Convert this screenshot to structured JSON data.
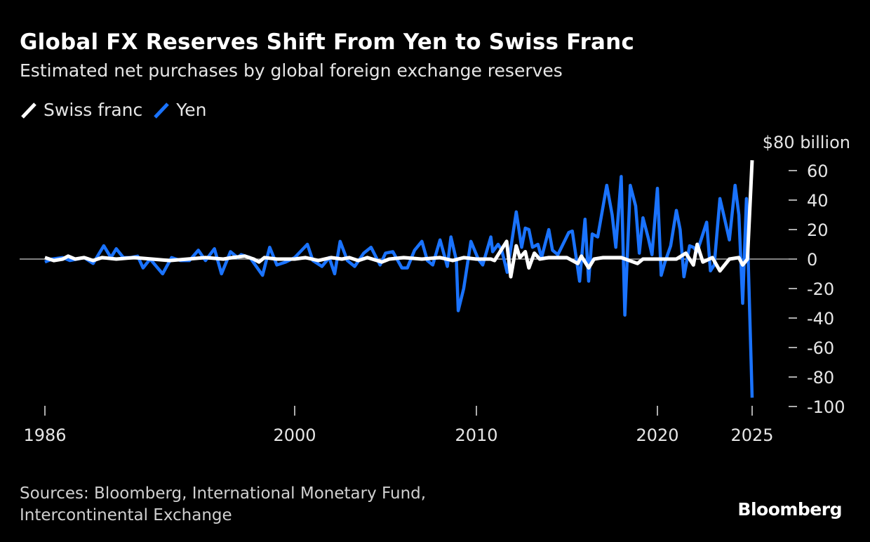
{
  "title": "Global FX Reserves Shift From Yen to Swiss Franc",
  "subtitle": "Estimated net purchases by global foreign exchange reserves",
  "legend": [
    {
      "label": "Swiss franc",
      "color": "#ffffff"
    },
    {
      "label": "Yen",
      "color": "#1a73ff"
    }
  ],
  "sources": [
    "Sources: Bloomberg, International Monetary Fund,",
    "Intercontinental Exchange"
  ],
  "logo": "Bloomberg",
  "chart_data": {
    "type": "line",
    "title": "Global FX Reserves Shift From Yen to Swiss Franc",
    "subtitle": "Estimated net purchases by global foreign exchange reserves",
    "ylabel": "$80 billion",
    "y_unit_label": "$80 billion",
    "ylim": [
      -100,
      80
    ],
    "yticks": [
      60,
      40,
      20,
      0,
      -20,
      -40,
      -60,
      -80,
      -100
    ],
    "xlim": [
      1986,
      2025
    ],
    "xticks": [
      1986,
      2000,
      2010,
      2020,
      2025
    ],
    "y_axis_position": "right",
    "legend_position": "top-left",
    "grid": false,
    "zero_line": true,
    "series": [
      {
        "name": "Yen",
        "color": "#1a73ff",
        "points": [
          [
            1986.0,
            -2
          ],
          [
            1986.4,
            0
          ],
          [
            1987.0,
            1
          ],
          [
            1987.4,
            -1
          ],
          [
            1987.8,
            0
          ],
          [
            1988.2,
            1
          ],
          [
            1988.7,
            -3
          ],
          [
            1989.3,
            9
          ],
          [
            1989.7,
            1
          ],
          [
            1990.0,
            7
          ],
          [
            1990.4,
            1
          ],
          [
            1990.8,
            1
          ],
          [
            1991.2,
            2
          ],
          [
            1991.5,
            -6
          ],
          [
            1991.9,
            0
          ],
          [
            1992.6,
            -10
          ],
          [
            1993.1,
            1
          ],
          [
            1993.6,
            -1
          ],
          [
            1994.1,
            -1
          ],
          [
            1994.6,
            6
          ],
          [
            1995.0,
            -1
          ],
          [
            1995.5,
            7
          ],
          [
            1995.9,
            -10
          ],
          [
            1996.4,
            5
          ],
          [
            1996.8,
            1
          ],
          [
            1997.0,
            3
          ],
          [
            1997.5,
            1
          ],
          [
            1998.2,
            -11
          ],
          [
            1998.6,
            8
          ],
          [
            1999.0,
            -4
          ],
          [
            1999.5,
            -2
          ],
          [
            2000.0,
            1
          ],
          [
            2000.7,
            10
          ],
          [
            2001.0,
            -1
          ],
          [
            2001.5,
            -5
          ],
          [
            2001.9,
            1
          ],
          [
            2002.2,
            -10
          ],
          [
            2002.5,
            12
          ],
          [
            2002.9,
            -1
          ],
          [
            2003.3,
            -5
          ],
          [
            2003.8,
            4
          ],
          [
            2004.2,
            8
          ],
          [
            2004.7,
            -4
          ],
          [
            2005.0,
            4
          ],
          [
            2005.4,
            5
          ],
          [
            2005.9,
            -6
          ],
          [
            2006.2,
            -6
          ],
          [
            2006.6,
            6
          ],
          [
            2007.0,
            12
          ],
          [
            2007.3,
            -1
          ],
          [
            2007.6,
            -4
          ],
          [
            2008.0,
            13
          ],
          [
            2008.4,
            -5
          ],
          [
            2008.6,
            15
          ],
          [
            2008.9,
            -1
          ],
          [
            2009.0,
            -35
          ],
          [
            2009.3,
            -20
          ],
          [
            2009.7,
            12
          ],
          [
            2010.1,
            0
          ],
          [
            2010.35,
            -4
          ],
          [
            2010.8,
            15
          ],
          [
            2010.9,
            5
          ],
          [
            2011.2,
            10
          ],
          [
            2011.4,
            6
          ],
          [
            2011.7,
            -9
          ],
          [
            2012.2,
            32
          ],
          [
            2012.5,
            8
          ],
          [
            2012.7,
            21
          ],
          [
            2012.9,
            20
          ],
          [
            2013.1,
            8
          ],
          [
            2013.4,
            10
          ],
          [
            2013.6,
            1
          ],
          [
            2014.0,
            20
          ],
          [
            2014.2,
            6
          ],
          [
            2014.5,
            3
          ],
          [
            2015.1,
            18
          ],
          [
            2015.3,
            19
          ],
          [
            2015.7,
            -15
          ],
          [
            2016.0,
            27
          ],
          [
            2016.2,
            -15
          ],
          [
            2016.4,
            17
          ],
          [
            2016.7,
            15
          ],
          [
            2017.2,
            50
          ],
          [
            2017.5,
            30
          ],
          [
            2017.7,
            8
          ],
          [
            2018.0,
            56
          ],
          [
            2018.2,
            -38
          ],
          [
            2018.5,
            50
          ],
          [
            2018.8,
            36
          ],
          [
            2019.0,
            4
          ],
          [
            2019.2,
            28
          ],
          [
            2019.5,
            14
          ],
          [
            2019.7,
            3
          ],
          [
            2020.0,
            48
          ],
          [
            2020.2,
            -11
          ],
          [
            2020.4,
            -2
          ],
          [
            2020.7,
            9
          ],
          [
            2021.0,
            33
          ],
          [
            2021.2,
            20
          ],
          [
            2021.4,
            -12
          ],
          [
            2021.7,
            9
          ],
          [
            2021.9,
            8
          ],
          [
            2022.1,
            5
          ],
          [
            2022.6,
            25
          ],
          [
            2022.8,
            -8
          ],
          [
            2023.0,
            -4
          ],
          [
            2023.3,
            41
          ],
          [
            2023.5,
            30
          ],
          [
            2023.8,
            13
          ],
          [
            2024.1,
            50
          ],
          [
            2024.3,
            30
          ],
          [
            2024.5,
            -30
          ],
          [
            2024.7,
            41
          ],
          [
            2025.0,
            -94
          ]
        ]
      },
      {
        "name": "Swiss franc",
        "color": "#ffffff",
        "points": [
          [
            1986.0,
            1
          ],
          [
            1986.5,
            -1
          ],
          [
            1987.0,
            0
          ],
          [
            1987.3,
            2
          ],
          [
            1987.7,
            0
          ],
          [
            1988.2,
            1
          ],
          [
            1988.7,
            -1
          ],
          [
            1989.2,
            1
          ],
          [
            1990.0,
            0
          ],
          [
            1991.0,
            1
          ],
          [
            1992.0,
            0
          ],
          [
            1993.0,
            -1
          ],
          [
            1994.0,
            0
          ],
          [
            1995.0,
            1
          ],
          [
            1996.0,
            0
          ],
          [
            1996.5,
            1
          ],
          [
            1997.2,
            2
          ],
          [
            1997.7,
            0
          ],
          [
            1998.0,
            -2
          ],
          [
            1998.3,
            1
          ],
          [
            1999.0,
            0
          ],
          [
            2000.0,
            0
          ],
          [
            2000.6,
            1
          ],
          [
            2001.3,
            -1
          ],
          [
            2002.0,
            1
          ],
          [
            2002.6,
            0
          ],
          [
            2003.0,
            1
          ],
          [
            2003.5,
            -1
          ],
          [
            2004.0,
            1
          ],
          [
            2004.8,
            -2
          ],
          [
            2005.2,
            0
          ],
          [
            2006.0,
            1
          ],
          [
            2007.0,
            0
          ],
          [
            2008.0,
            1
          ],
          [
            2008.7,
            -1
          ],
          [
            2009.3,
            1
          ],
          [
            2010.0,
            0
          ],
          [
            2010.8,
            0
          ],
          [
            2011.0,
            -1
          ],
          [
            2011.67,
            12
          ],
          [
            2011.9,
            -12
          ],
          [
            2012.2,
            9
          ],
          [
            2012.4,
            1
          ],
          [
            2012.7,
            5
          ],
          [
            2012.9,
            -6
          ],
          [
            2013.2,
            4
          ],
          [
            2013.5,
            0
          ],
          [
            2014.0,
            1
          ],
          [
            2015.0,
            1
          ],
          [
            2015.6,
            -3
          ],
          [
            2015.8,
            2
          ],
          [
            2016.2,
            -6
          ],
          [
            2016.5,
            0
          ],
          [
            2017.0,
            1
          ],
          [
            2018.0,
            1
          ],
          [
            2018.9,
            -3
          ],
          [
            2019.2,
            0
          ],
          [
            2020.0,
            0
          ],
          [
            2021.0,
            0
          ],
          [
            2021.5,
            4
          ],
          [
            2021.9,
            -4
          ],
          [
            2022.1,
            10
          ],
          [
            2022.4,
            -2
          ],
          [
            2022.9,
            1
          ],
          [
            2023.3,
            -8
          ],
          [
            2023.8,
            0
          ],
          [
            2024.3,
            1
          ],
          [
            2024.5,
            -4
          ],
          [
            2024.75,
            0
          ],
          [
            2025.0,
            67
          ]
        ]
      }
    ]
  }
}
